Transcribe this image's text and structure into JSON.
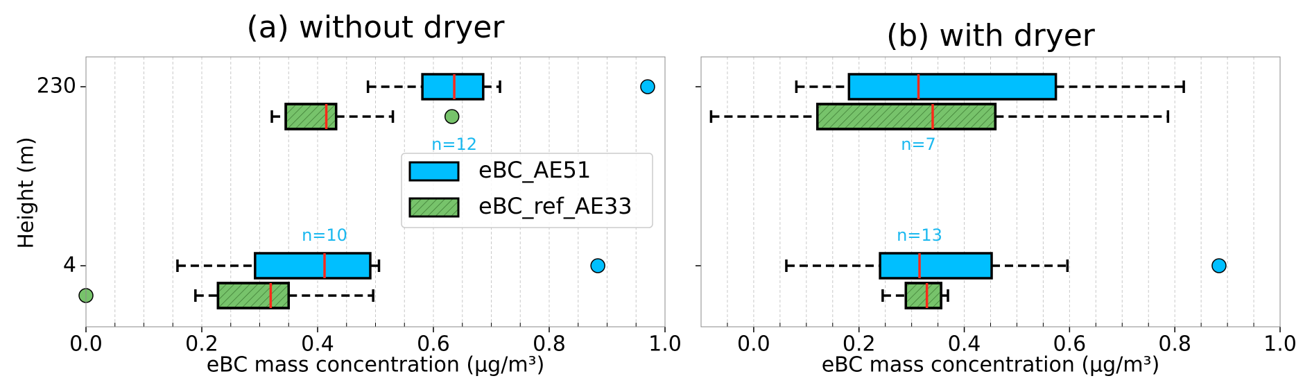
{
  "chart_data": [
    {
      "type": "box",
      "title": "(a) without dryer",
      "xlabel": "eBC mass concentration (µg/m³)",
      "ylabel": "Height (m)",
      "categories": [
        "230",
        "4"
      ],
      "xlim": [
        0,
        1.0
      ],
      "xticks": [
        {
          "value": 0,
          "label": "0.0"
        },
        0.2,
        0.4,
        0.6,
        0.8,
        {
          "value": 1.0,
          "label": "1.0"
        }
      ],
      "xminorticks": [
        0.05,
        0.1,
        0.15,
        0.25,
        0.3,
        0.35,
        0.45,
        0.5,
        0.55,
        0.65,
        0.7,
        0.75,
        0.85,
        0.9,
        0.95
      ],
      "grid": true,
      "legend": "center",
      "median_color": "#ff2a1a",
      "series": [
        {
          "name": "eBC_AE51",
          "color": "#00bfff",
          "hatch": false,
          "boxes": [
            {
              "whislo": 0.487,
              "q1": 0.581,
              "med": 0.636,
              "q3": 0.686,
              "whishi": 0.715,
              "fliers": [
                0.97
              ]
            },
            {
              "whislo": 0.158,
              "q1": 0.292,
              "med": 0.412,
              "q3": 0.491,
              "whishi": 0.506,
              "fliers": [
                0.884
              ]
            }
          ]
        },
        {
          "name": "eBC_ref_AE33",
          "color": "#77c36b",
          "hatch": true,
          "boxes": [
            {
              "whislo": 0.321,
              "q1": 0.345,
              "med": 0.415,
              "q3": 0.432,
              "whishi": 0.53,
              "fliers": [
                0.632
              ]
            },
            {
              "whislo": 0.189,
              "q1": 0.228,
              "med": 0.319,
              "q3": 0.35,
              "whishi": 0.496,
              "fliers": [
                0.0
              ]
            }
          ]
        }
      ],
      "count_labels": [
        "n=12",
        "n=10"
      ],
      "count_color": "#1ab8ef"
    },
    {
      "type": "box",
      "title": "(b) with dryer",
      "xlabel": "eBC mass concentration (µg/m³)",
      "xlim": [
        -0.1,
        1.0
      ],
      "xticks": [
        {
          "value": 0,
          "label": "0.0"
        },
        0.2,
        0.4,
        0.6,
        0.8,
        {
          "value": 1.0,
          "label": "1.0"
        }
      ],
      "xminorticks": [
        -0.05,
        0.05,
        0.1,
        0.15,
        0.25,
        0.3,
        0.35,
        0.45,
        0.5,
        0.55,
        0.65,
        0.7,
        0.75,
        0.85,
        0.9,
        0.95
      ],
      "grid": true,
      "median_color": "#ff2a1a",
      "series": [
        {
          "color": "#00bfff",
          "hatch": false,
          "boxes": [
            {
              "whislo": 0.081,
              "q1": 0.181,
              "med": 0.313,
              "q3": 0.574,
              "whishi": 0.817,
              "fliers": []
            },
            {
              "whislo": 0.062,
              "q1": 0.24,
              "med": 0.315,
              "q3": 0.452,
              "whishi": 0.596,
              "fliers": [
                0.884
              ]
            }
          ]
        },
        {
          "color": "#77c36b",
          "hatch": true,
          "boxes": [
            {
              "whislo": -0.081,
              "q1": 0.121,
              "med": 0.34,
              "q3": 0.459,
              "whishi": 0.787,
              "fliers": []
            },
            {
              "whislo": 0.245,
              "q1": 0.289,
              "med": 0.329,
              "q3": 0.356,
              "whishi": 0.369,
              "fliers": []
            }
          ]
        }
      ],
      "count_labels": [
        "n=7",
        "n=13"
      ],
      "count_color": "#1ab8ef"
    }
  ]
}
